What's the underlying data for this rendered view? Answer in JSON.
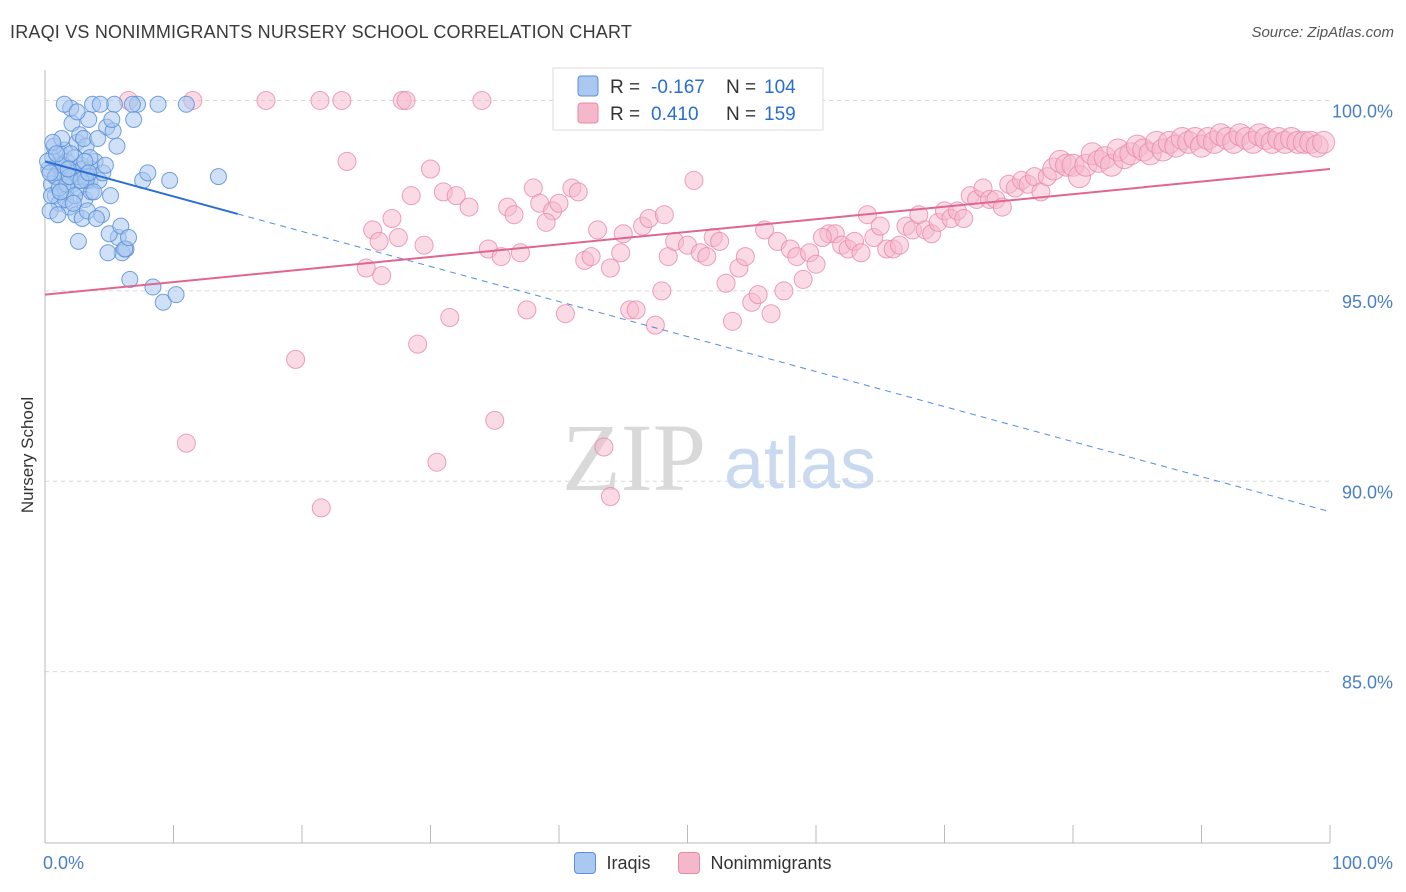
{
  "title": "IRAQI VS NONIMMIGRANTS NURSERY SCHOOL CORRELATION CHART",
  "source": "Source: ZipAtlas.com",
  "watermark": {
    "zip": "ZIP",
    "atlas": "atlas"
  },
  "colors": {
    "blue_fill": "#aac8f0",
    "blue_stroke": "#5b8fd6",
    "blue_line": "#2a6fd0",
    "pink_fill": "#f5b8cb",
    "pink_stroke": "#e889a8",
    "pink_line": "#e06690",
    "tick_label": "#4a7fc8",
    "grid": "#d8d8d8"
  },
  "stats": {
    "iraqis": {
      "r_label": "R = ",
      "r": "-0.167",
      "n_label": "N = ",
      "n": "104"
    },
    "nonimmigrants": {
      "r_label": "R = ",
      "r": "0.410",
      "n_label": "N = ",
      "n": "159"
    }
  },
  "chart_data": {
    "type": "scatter",
    "title": "IRAQI VS NONIMMIGRANTS NURSERY SCHOOL CORRELATION CHART",
    "xlabel": "",
    "ylabel": "Nursery School",
    "xlim": [
      0,
      100
    ],
    "ylim": [
      80.5,
      100.8
    ],
    "x_tick_labels": [
      "0.0%",
      "100.0%"
    ],
    "y_ticks": [
      85,
      90,
      95,
      100
    ],
    "y_tick_labels": [
      "85.0%",
      "90.0%",
      "95.0%",
      "100.0%"
    ],
    "legend": [
      "Iraqis",
      "Nonimmigrants"
    ],
    "series": [
      {
        "name": "Iraqis",
        "trend": {
          "x0": 0,
          "y0": 98.4,
          "x1": 100,
          "y1": 89.2,
          "solid_until_x": 15
        },
        "points": [
          [
            0.3,
            98.2
          ],
          [
            0.5,
            97.8
          ],
          [
            0.6,
            98.5
          ],
          [
            0.8,
            97.5
          ],
          [
            0.9,
            98.0
          ],
          [
            1.0,
            98.3
          ],
          [
            1.1,
            97.3
          ],
          [
            1.2,
            98.6
          ],
          [
            1.3,
            97.9
          ],
          [
            1.4,
            98.1
          ],
          [
            1.5,
            98.7
          ],
          [
            1.6,
            97.6
          ],
          [
            1.7,
            98.4
          ],
          [
            1.8,
            98.0
          ],
          [
            1.9,
            97.2
          ],
          [
            2.0,
            98.2
          ],
          [
            2.1,
            99.4
          ],
          [
            2.2,
            97.8
          ],
          [
            2.3,
            98.5
          ],
          [
            2.4,
            97.0
          ],
          [
            2.5,
            98.9
          ],
          [
            2.6,
            97.7
          ],
          [
            2.7,
            99.1
          ],
          [
            2.8,
            98.3
          ],
          [
            2.9,
            96.9
          ],
          [
            3.0,
            98.0
          ],
          [
            3.1,
            97.4
          ],
          [
            3.2,
            98.8
          ],
          [
            3.3,
            97.1
          ],
          [
            3.4,
            99.5
          ],
          [
            3.5,
            97.9
          ],
          [
            3.6,
            98.2
          ],
          [
            0.4,
            97.1
          ],
          [
            0.7,
            98.8
          ],
          [
            1.0,
            97.0
          ],
          [
            1.3,
            99.0
          ],
          [
            1.6,
            97.4
          ],
          [
            2.0,
            99.8
          ],
          [
            2.3,
            98.1
          ],
          [
            2.6,
            96.3
          ],
          [
            3.0,
            99.0
          ],
          [
            3.3,
            98.0
          ],
          [
            3.6,
            97.6
          ],
          [
            3.9,
            98.4
          ],
          [
            4.2,
            97.9
          ],
          [
            4.5,
            98.1
          ],
          [
            4.8,
            99.3
          ],
          [
            5.1,
            97.5
          ],
          [
            5.4,
            99.9
          ],
          [
            5.7,
            96.4
          ],
          [
            6.0,
            96.0
          ],
          [
            6.3,
            96.1
          ],
          [
            6.6,
            95.3
          ],
          [
            6.9,
            99.5
          ],
          [
            7.2,
            99.9
          ],
          [
            7.6,
            97.9
          ],
          [
            8.0,
            98.1
          ],
          [
            8.4,
            95.1
          ],
          [
            8.8,
            99.9
          ],
          [
            9.2,
            94.7
          ],
          [
            9.7,
            97.9
          ],
          [
            10.2,
            94.9
          ],
          [
            11.0,
            99.9
          ],
          [
            13.5,
            98.0
          ],
          [
            0.5,
            97.5
          ],
          [
            0.8,
            98.0
          ],
          [
            1.1,
            97.7
          ],
          [
            1.4,
            98.3
          ],
          [
            1.7,
            97.8
          ],
          [
            2.0,
            98.6
          ],
          [
            2.3,
            97.5
          ],
          [
            2.6,
            98.0
          ],
          [
            2.9,
            98.2
          ],
          [
            3.2,
            97.9
          ],
          [
            3.5,
            98.5
          ],
          [
            3.8,
            97.6
          ],
          [
            4.1,
            99.0
          ],
          [
            4.4,
            97.0
          ],
          [
            4.7,
            98.3
          ],
          [
            5.0,
            96.5
          ],
          [
            5.3,
            99.2
          ],
          [
            5.6,
            98.8
          ],
          [
            5.9,
            96.7
          ],
          [
            6.2,
            96.1
          ],
          [
            6.5,
            96.4
          ],
          [
            6.8,
            99.9
          ],
          [
            1.5,
            99.9
          ],
          [
            2.5,
            99.7
          ],
          [
            3.7,
            99.9
          ],
          [
            4.3,
            99.9
          ],
          [
            0.2,
            98.4
          ],
          [
            0.6,
            98.9
          ],
          [
            1.9,
            98.0
          ],
          [
            2.2,
            97.3
          ],
          [
            3.1,
            98.4
          ],
          [
            4.0,
            96.9
          ],
          [
            4.9,
            96.0
          ],
          [
            0.9,
            98.6
          ],
          [
            1.2,
            97.6
          ],
          [
            2.8,
            97.9
          ],
          [
            3.4,
            98.1
          ],
          [
            5.2,
            99.5
          ],
          [
            0.4,
            98.1
          ],
          [
            1.8,
            98.2
          ]
        ]
      },
      {
        "name": "Nonimmigrants",
        "trend": {
          "x0": 0,
          "y0": 94.9,
          "x1": 100,
          "y1": 98.2
        },
        "points": [
          [
            6.5,
            100
          ],
          [
            11.5,
            100
          ],
          [
            17.2,
            100
          ],
          [
            21.4,
            100
          ],
          [
            23.1,
            100
          ],
          [
            27.8,
            100
          ],
          [
            28.1,
            100
          ],
          [
            34.0,
            100
          ],
          [
            23.5,
            98.4
          ],
          [
            25.0,
            95.6
          ],
          [
            25.5,
            96.6
          ],
          [
            26.0,
            96.3
          ],
          [
            26.2,
            95.4
          ],
          [
            27.0,
            96.9
          ],
          [
            27.5,
            96.4
          ],
          [
            28.5,
            97.5
          ],
          [
            29.5,
            96.2
          ],
          [
            30.0,
            98.2
          ],
          [
            31.0,
            97.6
          ],
          [
            31.5,
            94.3
          ],
          [
            32.0,
            97.5
          ],
          [
            33.0,
            97.2
          ],
          [
            34.5,
            96.1
          ],
          [
            35.5,
            95.9
          ],
          [
            36.0,
            97.2
          ],
          [
            37.0,
            96.0
          ],
          [
            37.5,
            94.5
          ],
          [
            38.0,
            97.7
          ],
          [
            38.5,
            97.3
          ],
          [
            39.5,
            97.1
          ],
          [
            40.0,
            97.3
          ],
          [
            40.5,
            94.4
          ],
          [
            41.0,
            97.7
          ],
          [
            41.5,
            97.6
          ],
          [
            42.0,
            95.8
          ],
          [
            42.5,
            95.9
          ],
          [
            43.0,
            96.6
          ],
          [
            44.0,
            95.6
          ],
          [
            45.0,
            96.5
          ],
          [
            45.5,
            94.5
          ],
          [
            46.0,
            94.5
          ],
          [
            46.5,
            96.7
          ],
          [
            47.0,
            96.9
          ],
          [
            47.5,
            94.1
          ],
          [
            48.0,
            95.0
          ],
          [
            48.5,
            95.9
          ],
          [
            49.0,
            96.3
          ],
          [
            50.0,
            96.2
          ],
          [
            50.5,
            97.9
          ],
          [
            51.0,
            96.0
          ],
          [
            51.5,
            95.9
          ],
          [
            52.0,
            96.4
          ],
          [
            53.0,
            95.2
          ],
          [
            53.5,
            94.2
          ],
          [
            54.0,
            95.6
          ],
          [
            54.5,
            95.9
          ],
          [
            55.0,
            94.7
          ],
          [
            55.5,
            94.9
          ],
          [
            56.0,
            96.6
          ],
          [
            56.5,
            94.4
          ],
          [
            57.0,
            96.3
          ],
          [
            57.5,
            95.0
          ],
          [
            58.0,
            96.1
          ],
          [
            58.5,
            95.9
          ],
          [
            59.0,
            95.3
          ],
          [
            59.5,
            96.0
          ],
          [
            60.0,
            95.7
          ],
          [
            61.0,
            96.5
          ],
          [
            61.5,
            96.5
          ],
          [
            62.0,
            96.2
          ],
          [
            62.5,
            96.1
          ],
          [
            63.0,
            96.3
          ],
          [
            63.5,
            96.0
          ],
          [
            64.0,
            97.0
          ],
          [
            64.5,
            96.4
          ],
          [
            65.0,
            96.7
          ],
          [
            65.5,
            96.1
          ],
          [
            66.0,
            96.1
          ],
          [
            67.0,
            96.7
          ],
          [
            67.5,
            96.6
          ],
          [
            68.0,
            97.0
          ],
          [
            68.5,
            96.6
          ],
          [
            69.0,
            96.5
          ],
          [
            69.5,
            96.8
          ],
          [
            70.0,
            97.1
          ],
          [
            70.5,
            96.9
          ],
          [
            71.0,
            97.1
          ],
          [
            71.5,
            96.9
          ],
          [
            72.0,
            97.5
          ],
          [
            72.5,
            97.4
          ],
          [
            73.0,
            97.7
          ],
          [
            73.5,
            97.4
          ],
          [
            74.0,
            97.4
          ],
          [
            74.5,
            97.2
          ],
          [
            75.0,
            97.8
          ],
          [
            75.5,
            97.7
          ],
          [
            76.0,
            97.9
          ],
          [
            76.5,
            97.8
          ],
          [
            77.0,
            98.0
          ],
          [
            77.5,
            97.6
          ],
          [
            78.0,
            98.0
          ],
          [
            78.5,
            98.2
          ],
          [
            79.0,
            98.4
          ],
          [
            79.5,
            98.3
          ],
          [
            80.0,
            98.3
          ],
          [
            80.5,
            98.0
          ],
          [
            81.0,
            98.3
          ],
          [
            81.5,
            98.6
          ],
          [
            82.0,
            98.4
          ],
          [
            82.5,
            98.5
          ],
          [
            83.0,
            98.3
          ],
          [
            83.5,
            98.7
          ],
          [
            84.0,
            98.5
          ],
          [
            84.5,
            98.6
          ],
          [
            85.0,
            98.8
          ],
          [
            85.5,
            98.7
          ],
          [
            86.0,
            98.6
          ],
          [
            86.5,
            98.9
          ],
          [
            87.0,
            98.7
          ],
          [
            87.5,
            98.9
          ],
          [
            88.0,
            98.8
          ],
          [
            88.5,
            99.0
          ],
          [
            89.0,
            98.9
          ],
          [
            89.5,
            99.0
          ],
          [
            90.0,
            98.8
          ],
          [
            90.5,
            99.0
          ],
          [
            91.0,
            98.9
          ],
          [
            91.5,
            99.1
          ],
          [
            92.0,
            99.0
          ],
          [
            92.5,
            98.9
          ],
          [
            93.0,
            99.1
          ],
          [
            93.5,
            99.0
          ],
          [
            94.0,
            98.9
          ],
          [
            94.5,
            99.1
          ],
          [
            95.0,
            99.0
          ],
          [
            95.5,
            98.9
          ],
          [
            96.0,
            99.0
          ],
          [
            96.5,
            98.9
          ],
          [
            97.0,
            99.0
          ],
          [
            97.5,
            98.9
          ],
          [
            98.0,
            98.9
          ],
          [
            98.5,
            98.9
          ],
          [
            99.0,
            98.8
          ],
          [
            99.5,
            98.9
          ],
          [
            11.0,
            91.0
          ],
          [
            19.5,
            93.2
          ],
          [
            21.5,
            89.3
          ],
          [
            29.0,
            93.6
          ],
          [
            30.5,
            90.5
          ],
          [
            35.0,
            91.6
          ],
          [
            43.5,
            90.9
          ],
          [
            44.0,
            89.6
          ],
          [
            36.5,
            97.0
          ],
          [
            39.0,
            96.8
          ],
          [
            44.8,
            96.0
          ],
          [
            48.2,
            97.0
          ],
          [
            52.5,
            96.3
          ],
          [
            60.5,
            96.4
          ],
          [
            66.5,
            96.2
          ]
        ]
      }
    ]
  }
}
